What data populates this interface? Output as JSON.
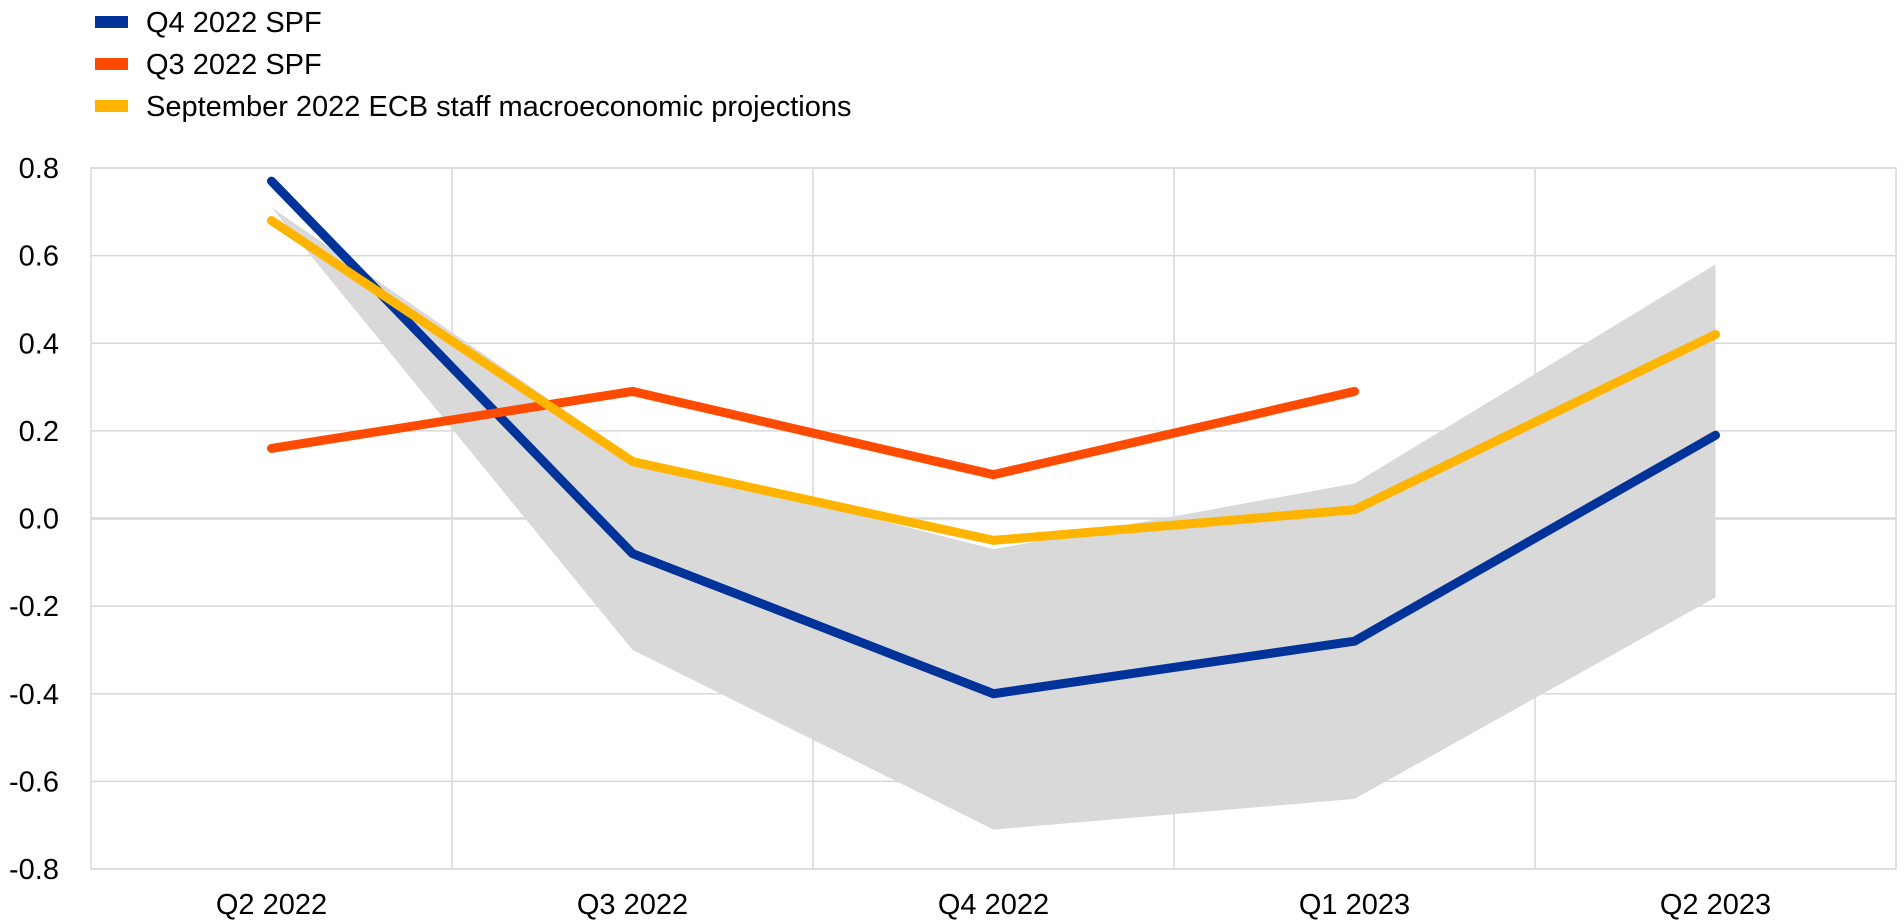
{
  "chart_data": {
    "type": "line",
    "title": "",
    "xlabel": "",
    "ylabel": "",
    "categories": [
      "Q2 2022",
      "Q3 2022",
      "Q4 2022",
      "Q1 2023",
      "Q2 2023"
    ],
    "ylim": [
      -0.8,
      0.8
    ],
    "yticks": [
      "0.8",
      "0.6",
      "0.4",
      "0.2",
      "0.0",
      "-0.2",
      "-0.4",
      "-0.6",
      "-0.8"
    ],
    "grid": true,
    "legend_position": "top-left",
    "band": {
      "color": "#d9d9d9",
      "upper": [
        0.71,
        0.14,
        -0.07,
        0.08,
        0.58
      ],
      "lower": [
        0.71,
        -0.3,
        -0.71,
        -0.64,
        -0.18
      ]
    },
    "series": [
      {
        "name": "Q4 2022 SPF",
        "color": "#003399",
        "values": [
          0.77,
          -0.08,
          -0.4,
          -0.28,
          0.19
        ]
      },
      {
        "name": "Q3 2022 SPF",
        "color": "#ff4b00",
        "values": [
          0.16,
          0.29,
          0.1,
          0.29,
          null
        ]
      },
      {
        "name": "September 2022 ECB staff macroeconomic projections",
        "color": "#ffb400",
        "values": [
          0.68,
          0.13,
          -0.05,
          0.02,
          0.42
        ]
      }
    ]
  }
}
